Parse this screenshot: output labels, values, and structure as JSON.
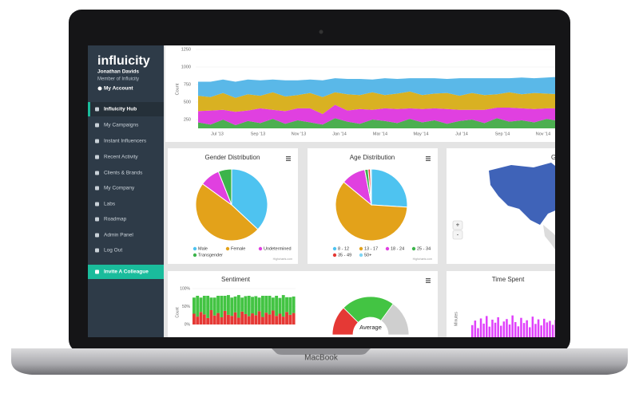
{
  "sidebar": {
    "brand": "influicity",
    "user_name": "Jonathan Davids",
    "user_role": "Member of Influicity",
    "account": "My Account",
    "menu": [
      "Influicity Hub",
      "My Campaigns",
      "Instant Influencers",
      "Recent Activity",
      "Clients & Brands",
      "My Company",
      "Labs",
      "Roadmap",
      "Admin Panel",
      "Log Out"
    ],
    "invite": "Invite A Colleague"
  },
  "top_chart": {
    "type": "area",
    "y_label": "Count",
    "ylim": [
      0,
      1250
    ],
    "yticks": [
      250,
      500,
      750,
      1000,
      1250
    ],
    "x_labels": [
      "Jul '13",
      "Sep '13",
      "Nov '13",
      "Jan '14",
      "Mar '14",
      "May '14",
      "Jul '14",
      "Sep '14",
      "Nov '14"
    ],
    "series": [
      {
        "color": "#4caf50",
        "values": [
          210,
          180,
          250,
          170,
          230,
          200,
          260,
          190,
          240,
          210,
          180,
          270,
          220,
          190,
          250,
          230,
          200,
          260,
          210,
          240,
          190,
          230,
          250,
          200,
          270,
          220,
          240,
          210,
          260,
          230
        ]
      },
      {
        "color": "#e040e0",
        "values": [
          160,
          200,
          140,
          190,
          150,
          210,
          130,
          180,
          170,
          200,
          150,
          190,
          160,
          210,
          140,
          180,
          200,
          150,
          190,
          170,
          210,
          160,
          140,
          190,
          150,
          200,
          170,
          190,
          150,
          180
        ]
      },
      {
        "color": "#d9b122",
        "values": [
          220,
          190,
          240,
          200,
          230,
          180,
          250,
          210,
          190,
          220,
          240,
          180,
          230,
          200,
          250,
          190,
          220,
          240,
          200,
          210,
          230,
          200,
          240,
          210,
          190,
          220,
          200,
          230,
          210,
          200
        ]
      },
      {
        "color": "#5ab8e8",
        "values": [
          200,
          220,
          190,
          230,
          210,
          220,
          180,
          230,
          210,
          190,
          240,
          200,
          220,
          230,
          180,
          240,
          210,
          190,
          240,
          220,
          200,
          250,
          210,
          240,
          230,
          200,
          240,
          210,
          230,
          250
        ]
      }
    ]
  },
  "gender": {
    "type": "pie",
    "title": "Gender Distribution",
    "categories": [
      "Male",
      "Female",
      "Undetermined",
      "Transgender"
    ],
    "values": [
      37,
      48,
      9,
      6
    ],
    "colors": [
      "#4ec3f0",
      "#e3a21a",
      "#e040e0",
      "#3cb44b"
    ],
    "credit": "Highcharts.com"
  },
  "age": {
    "type": "pie",
    "title": "Age Distribution",
    "categories": [
      "8 - 12",
      "13 - 17",
      "18 - 24",
      "25 - 34",
      "35 - 49",
      "50+"
    ],
    "values": [
      26,
      60,
      11,
      1.5,
      1,
      0.5
    ],
    "colors": [
      "#4ec3f0",
      "#e3a21a",
      "#e040e0",
      "#3cb44b",
      "#e53935",
      "#7fd6f5"
    ],
    "credit": "Highcharts.com"
  },
  "map": {
    "title": "G",
    "zoom_in": "+",
    "zoom_out": "-"
  },
  "sentiment": {
    "type": "bar",
    "title": "Sentiment",
    "y_label": "Count",
    "ylim": [
      0,
      100
    ],
    "yticks": [
      {
        "value": 0,
        "label": "0%"
      },
      {
        "value": 50,
        "label": "50%"
      },
      {
        "value": 100,
        "label": "100%"
      }
    ],
    "series": [
      {
        "color": "#e53935",
        "values": [
          30,
          22,
          35,
          28,
          18,
          40,
          25,
          32,
          20,
          38,
          27,
          24,
          34,
          19,
          36,
          29,
          23,
          31,
          26,
          37,
          21,
          33,
          28,
          39,
          24,
          30,
          22,
          35,
          27,
          32
        ]
      },
      {
        "color": "#43c443",
        "values": [
          45,
          58,
          40,
          52,
          62,
          35,
          50,
          48,
          60,
          42,
          55,
          51,
          44,
          63,
          39,
          50,
          57,
          46,
          53,
          38,
          59,
          47,
          52,
          36,
          56,
          44,
          60,
          41,
          49,
          46
        ]
      }
    ],
    "gauge": {
      "label": "Average",
      "values": [
        25,
        45,
        30
      ],
      "colors": [
        "#e53935",
        "#43c443",
        "#cfcfcf"
      ]
    }
  },
  "time_spent": {
    "type": "bar",
    "title": "Time Spent",
    "y_label": "Minutes",
    "ylim": [
      0,
      100
    ],
    "color": "#e040fb",
    "values": [
      40,
      55,
      30,
      62,
      45,
      70,
      35,
      58,
      48,
      66,
      38,
      52,
      60,
      42,
      72,
      50,
      36,
      64,
      47,
      56,
      33,
      68,
      44,
      59,
      39,
      61,
      49,
      54,
      41,
      57
    ]
  },
  "device": "MacBook"
}
